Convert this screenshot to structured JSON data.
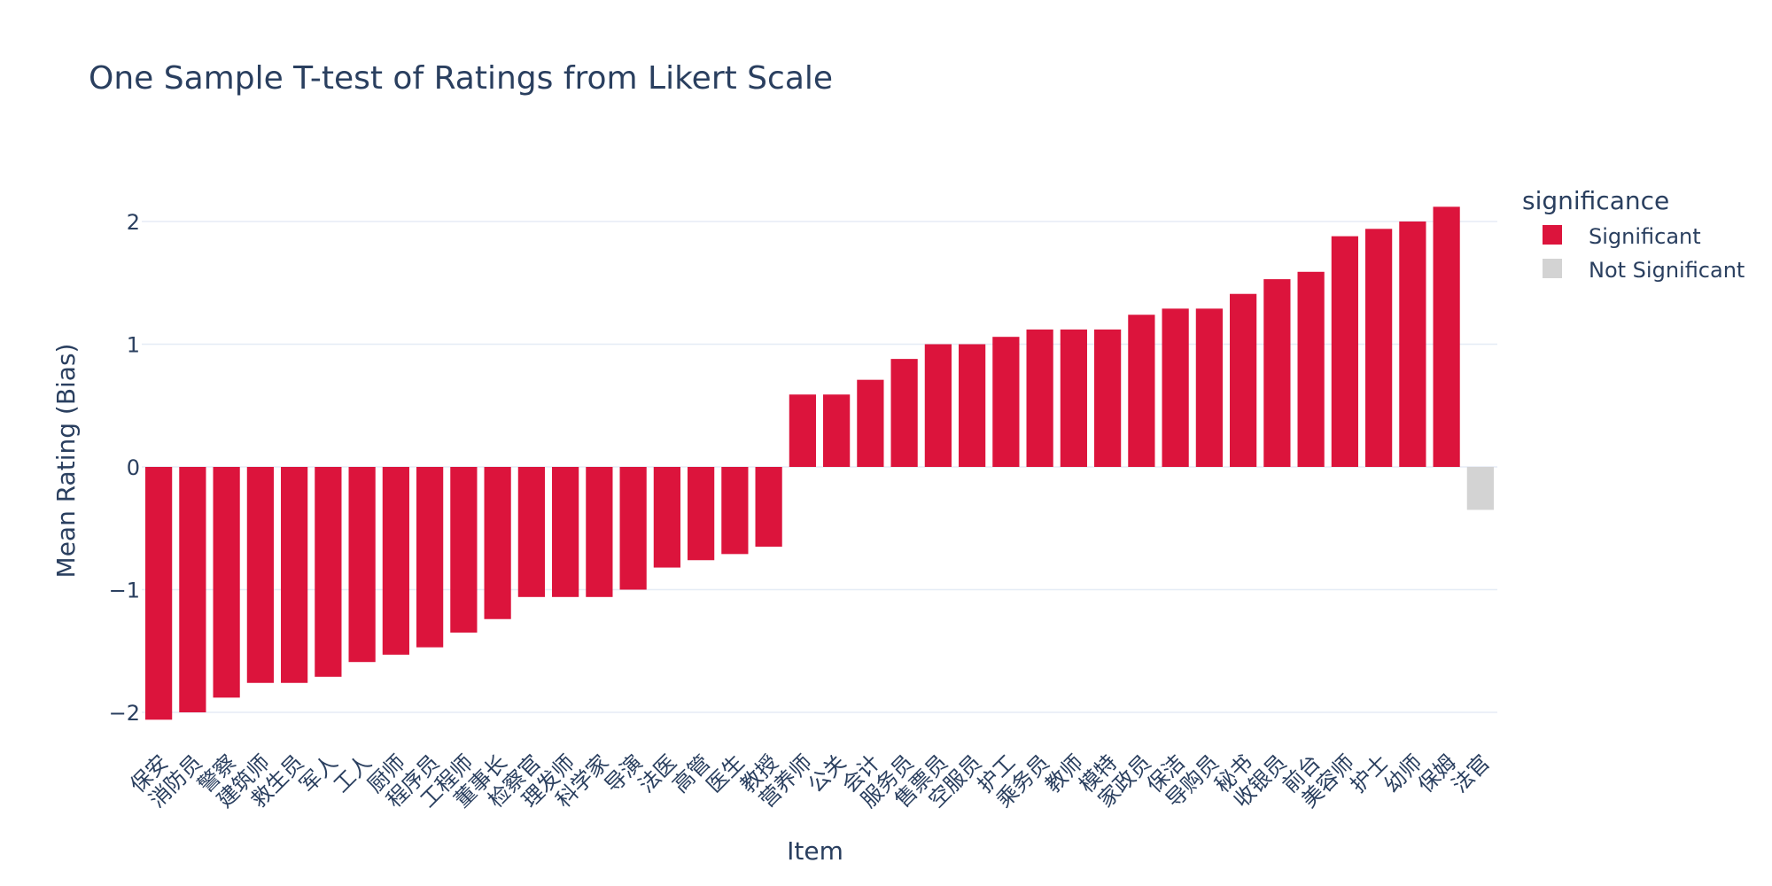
{
  "chart_data": {
    "type": "bar",
    "title": "One Sample T-test of Ratings from Likert Scale",
    "xlabel": "Item",
    "ylabel": "Mean Rating (Bias)",
    "ylim": [
      -2.1,
      2.5
    ],
    "yticks": [
      -2,
      -1,
      0,
      1,
      2
    ],
    "ytick_labels": [
      "−2",
      "−1",
      "0",
      "1",
      "2"
    ],
    "grid": true,
    "legend_position": "top-right",
    "legend_title": "significance",
    "categories": [
      "保安",
      "消防员",
      "警察",
      "建筑师",
      "救生员",
      "军人",
      "工人",
      "厨师",
      "程序员",
      "工程师",
      "董事长",
      "检察官",
      "理发师",
      "科学家",
      "导演",
      "法医",
      "高管",
      "医生",
      "教授",
      "营养师",
      "公关",
      "会计",
      "服务员",
      "售票员",
      "空服员",
      "护工",
      "乘务员",
      "教师",
      "模特",
      "家政员",
      "保洁",
      "导购员",
      "秘书",
      "收银员",
      "前台",
      "美容师",
      "护士",
      "幼师",
      "保姆",
      "法官"
    ],
    "values": [
      -2.06,
      -2.0,
      -1.88,
      -1.76,
      -1.76,
      -1.71,
      -1.59,
      -1.53,
      -1.47,
      -1.35,
      -1.24,
      -1.06,
      -1.06,
      -1.06,
      -1.0,
      -0.82,
      -0.76,
      -0.71,
      -0.65,
      0.59,
      0.59,
      0.71,
      0.88,
      1.0,
      1.0,
      1.06,
      1.12,
      1.12,
      1.12,
      1.24,
      1.29,
      1.29,
      1.41,
      1.53,
      1.59,
      1.88,
      1.94,
      2.0,
      2.12,
      -0.35
    ],
    "significance": [
      "Significant",
      "Significant",
      "Significant",
      "Significant",
      "Significant",
      "Significant",
      "Significant",
      "Significant",
      "Significant",
      "Significant",
      "Significant",
      "Significant",
      "Significant",
      "Significant",
      "Significant",
      "Significant",
      "Significant",
      "Significant",
      "Significant",
      "Significant",
      "Significant",
      "Significant",
      "Significant",
      "Significant",
      "Significant",
      "Significant",
      "Significant",
      "Significant",
      "Significant",
      "Significant",
      "Significant",
      "Significant",
      "Significant",
      "Significant",
      "Significant",
      "Significant",
      "Significant",
      "Significant",
      "Significant",
      "Not Significant"
    ],
    "series": [
      {
        "name": "Significant",
        "color": "#dc143c"
      },
      {
        "name": "Not Significant",
        "color": "#d3d3d3"
      }
    ]
  }
}
